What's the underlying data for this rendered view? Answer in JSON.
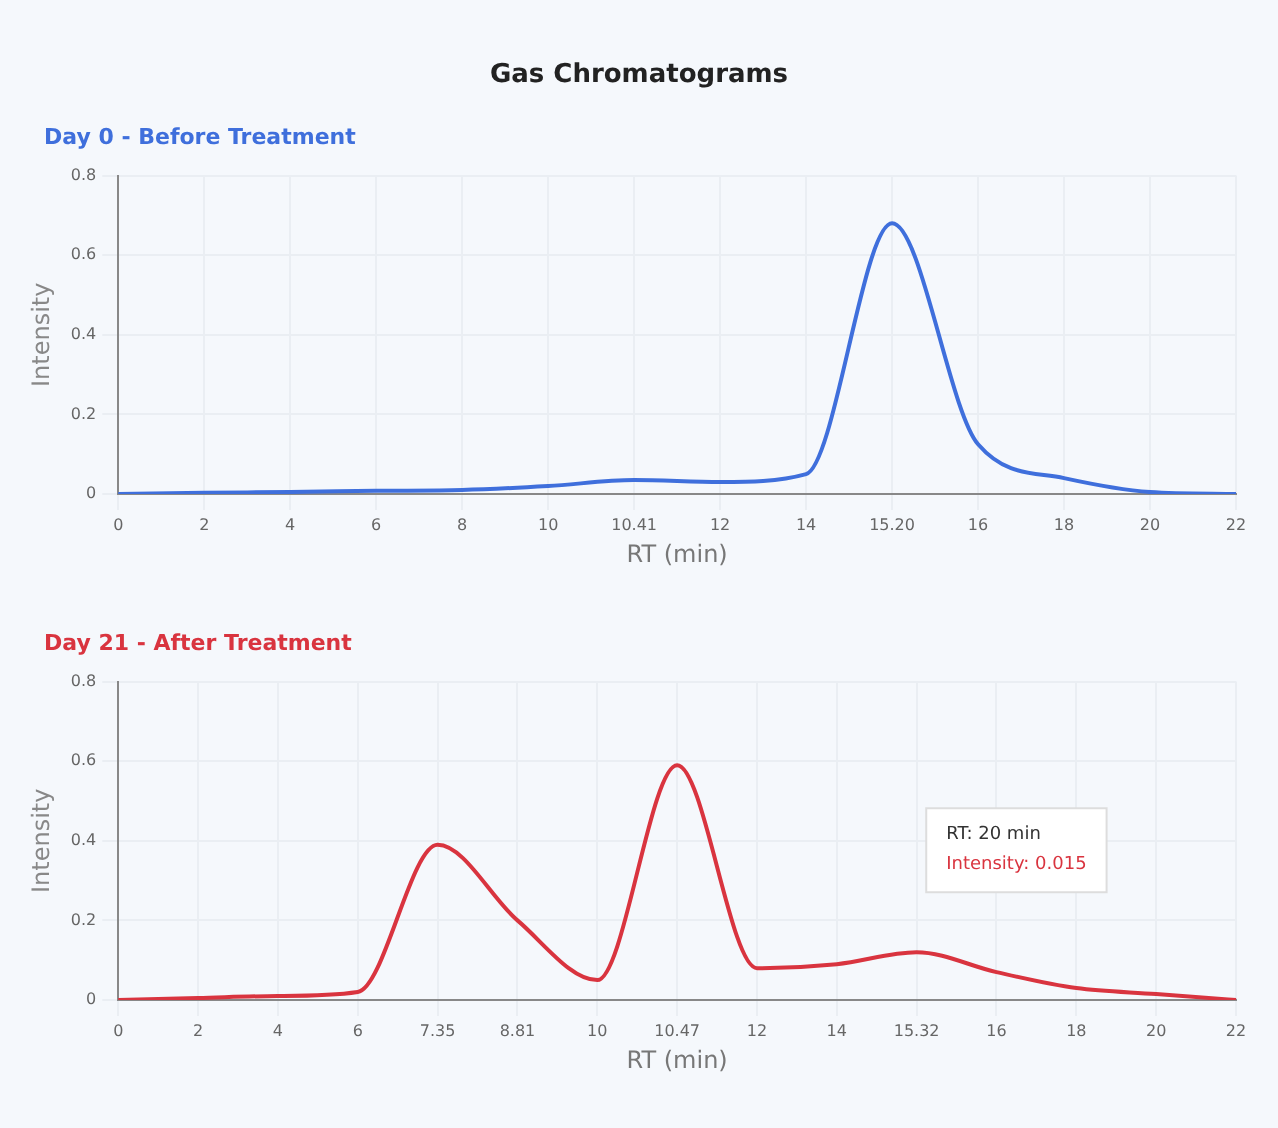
{
  "chart_data": [
    {
      "type": "line",
      "title": "Gas Chromatograms",
      "subtitle": "Day 0 - Before Treatment",
      "xlabel": "RT (min)",
      "ylabel": "Intensity",
      "categories": [
        "0",
        "2",
        "4",
        "6",
        "8",
        "10",
        "10.41",
        "12",
        "14",
        "15.20",
        "16",
        "18",
        "20",
        "22"
      ],
      "series": [
        {
          "color": "#3f6fdc",
          "values": [
            0,
            0.003,
            0.005,
            0.008,
            0.01,
            0.02,
            0.035,
            0.03,
            0.05,
            0.68,
            0.125,
            0.04,
            0.005,
            0
          ]
        }
      ],
      "ylim": [
        0,
        0.8
      ],
      "yticks": [
        0,
        0.2,
        0.4,
        0.6,
        0.8
      ],
      "grid": true,
      "marker": "none"
    },
    {
      "type": "line",
      "title": "Day 21 - After Treatment",
      "xlabel": "RT (min)",
      "ylabel": "Intensity",
      "categories": [
        "0",
        "2",
        "4",
        "6",
        "7.35",
        "8.81",
        "10",
        "10.47",
        "12",
        "14",
        "15.32",
        "16",
        "18",
        "20",
        "22"
      ],
      "series": [
        {
          "color": "#d9343f",
          "values": [
            0,
            0.005,
            0.01,
            0.02,
            0.39,
            0.2,
            0.05,
            0.59,
            0.08,
            0.09,
            0.12,
            0.07,
            0.03,
            0.015,
            0
          ]
        }
      ],
      "ylim": [
        0,
        0.8
      ],
      "yticks": [
        0,
        0.2,
        0.4,
        0.6,
        0.8
      ],
      "grid": true,
      "marker": "none",
      "annotations": [
        "RT: 20 min",
        "Intensity: 0.015"
      ]
    }
  ]
}
